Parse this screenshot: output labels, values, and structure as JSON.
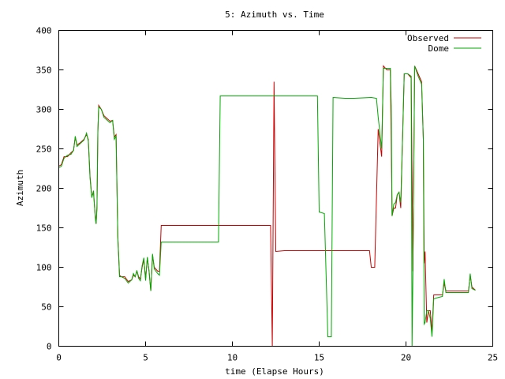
{
  "chart_data": {
    "type": "line",
    "title": "5: Azimuth vs. Time",
    "xlabel": "time (Elapse Hours)",
    "ylabel": "Azimuth",
    "xlim": [
      0,
      25
    ],
    "ylim": [
      0,
      400
    ],
    "xticks": [
      0,
      5,
      10,
      15,
      20,
      25
    ],
    "yticks": [
      0,
      50,
      100,
      150,
      200,
      250,
      300,
      350,
      400
    ],
    "grid": false,
    "legend_position": "top-right",
    "series": [
      {
        "name": "Observed",
        "color": "#cc0000",
        "points": [
          [
            0.0,
            228
          ],
          [
            0.15,
            230
          ],
          [
            0.3,
            240
          ],
          [
            0.5,
            240
          ],
          [
            0.7,
            245
          ],
          [
            0.85,
            248
          ],
          [
            0.95,
            265
          ],
          [
            1.05,
            255
          ],
          [
            1.25,
            258
          ],
          [
            1.45,
            262
          ],
          [
            1.6,
            268
          ],
          [
            1.7,
            262
          ],
          [
            1.8,
            215
          ],
          [
            1.9,
            190
          ],
          [
            2.0,
            195
          ],
          [
            2.1,
            165
          ],
          [
            2.15,
            155
          ],
          [
            2.2,
            175
          ],
          [
            2.25,
            270
          ],
          [
            2.3,
            305
          ],
          [
            2.45,
            300
          ],
          [
            2.6,
            292
          ],
          [
            2.75,
            289
          ],
          [
            2.95,
            285
          ],
          [
            3.1,
            286
          ],
          [
            3.2,
            265
          ],
          [
            3.3,
            268
          ],
          [
            3.4,
            140
          ],
          [
            3.5,
            90
          ],
          [
            3.6,
            88
          ],
          [
            3.8,
            88
          ],
          [
            4.0,
            82
          ],
          [
            4.2,
            84
          ],
          [
            4.3,
            90
          ],
          [
            4.4,
            88
          ],
          [
            4.5,
            95
          ],
          [
            4.6,
            88
          ],
          [
            4.7,
            85
          ],
          [
            4.8,
            100
          ],
          [
            4.9,
            110
          ],
          [
            5.0,
            85
          ],
          [
            5.1,
            112
          ],
          [
            5.2,
            95
          ],
          [
            5.3,
            70
          ],
          [
            5.4,
            115
          ],
          [
            5.5,
            100
          ],
          [
            5.7,
            95
          ],
          [
            5.8,
            95
          ],
          [
            5.9,
            153
          ],
          [
            6.5,
            153
          ],
          [
            8.0,
            153
          ],
          [
            9.0,
            153
          ],
          [
            10.0,
            153
          ],
          [
            11.0,
            153
          ],
          [
            12.0,
            153
          ],
          [
            12.2,
            153
          ],
          [
            12.3,
            0
          ],
          [
            12.4,
            335
          ],
          [
            12.5,
            120
          ],
          [
            13.0,
            121
          ],
          [
            14.0,
            121
          ],
          [
            15.0,
            121
          ],
          [
            16.0,
            121
          ],
          [
            17.0,
            121
          ],
          [
            17.9,
            121
          ],
          [
            18.0,
            100
          ],
          [
            18.2,
            100
          ],
          [
            18.4,
            275
          ],
          [
            18.6,
            240
          ],
          [
            18.7,
            355
          ],
          [
            18.9,
            350
          ],
          [
            19.1,
            350
          ],
          [
            19.2,
            165
          ],
          [
            19.3,
            175
          ],
          [
            19.4,
            175
          ],
          [
            19.5,
            192
          ],
          [
            19.6,
            195
          ],
          [
            19.7,
            175
          ],
          [
            19.8,
            260
          ],
          [
            19.9,
            345
          ],
          [
            20.1,
            345
          ],
          [
            20.3,
            340
          ],
          [
            20.4,
            95
          ],
          [
            20.5,
            355
          ],
          [
            20.7,
            345
          ],
          [
            20.9,
            335
          ],
          [
            21.0,
            262
          ],
          [
            21.05,
            105
          ],
          [
            21.1,
            120
          ],
          [
            21.2,
            30
          ],
          [
            21.3,
            45
          ],
          [
            21.4,
            45
          ],
          [
            21.5,
            18
          ],
          [
            21.6,
            65
          ],
          [
            21.9,
            65
          ],
          [
            22.1,
            65
          ],
          [
            22.2,
            80
          ],
          [
            22.3,
            70
          ],
          [
            22.8,
            70
          ],
          [
            23.0,
            70
          ],
          [
            23.5,
            70
          ],
          [
            23.6,
            70
          ],
          [
            23.7,
            90
          ],
          [
            23.8,
            75
          ],
          [
            24.0,
            71
          ]
        ]
      },
      {
        "name": "Dome",
        "color": "#00aa00",
        "points": [
          [
            0.0,
            226
          ],
          [
            0.15,
            228
          ],
          [
            0.3,
            238
          ],
          [
            0.5,
            242
          ],
          [
            0.7,
            243
          ],
          [
            0.85,
            248
          ],
          [
            0.95,
            266
          ],
          [
            1.05,
            253
          ],
          [
            1.25,
            257
          ],
          [
            1.45,
            261
          ],
          [
            1.6,
            270
          ],
          [
            1.7,
            260
          ],
          [
            1.8,
            213
          ],
          [
            1.9,
            188
          ],
          [
            2.0,
            197
          ],
          [
            2.1,
            163
          ],
          [
            2.15,
            155
          ],
          [
            2.2,
            177
          ],
          [
            2.25,
            272
          ],
          [
            2.3,
            303
          ],
          [
            2.45,
            300
          ],
          [
            2.6,
            290
          ],
          [
            2.75,
            287
          ],
          [
            2.95,
            283
          ],
          [
            3.1,
            286
          ],
          [
            3.2,
            262
          ],
          [
            3.3,
            266
          ],
          [
            3.4,
            138
          ],
          [
            3.5,
            88
          ],
          [
            3.6,
            88
          ],
          [
            3.8,
            86
          ],
          [
            4.0,
            80
          ],
          [
            4.2,
            84
          ],
          [
            4.3,
            92
          ],
          [
            4.4,
            88
          ],
          [
            4.5,
            96
          ],
          [
            4.6,
            86
          ],
          [
            4.7,
            83
          ],
          [
            4.8,
            102
          ],
          [
            4.9,
            112
          ],
          [
            5.0,
            83
          ],
          [
            5.1,
            113
          ],
          [
            5.2,
            95
          ],
          [
            5.3,
            70
          ],
          [
            5.4,
            117
          ],
          [
            5.5,
            98
          ],
          [
            5.7,
            92
          ],
          [
            5.8,
            90
          ],
          [
            5.9,
            132
          ],
          [
            6.5,
            132
          ],
          [
            8.0,
            132
          ],
          [
            9.0,
            132
          ],
          [
            9.2,
            132
          ],
          [
            9.3,
            317
          ],
          [
            10.0,
            317
          ],
          [
            12.0,
            317
          ],
          [
            13.0,
            317
          ],
          [
            14.0,
            317
          ],
          [
            14.9,
            317
          ],
          [
            15.0,
            170
          ],
          [
            15.3,
            168
          ],
          [
            15.5,
            12
          ],
          [
            15.7,
            12
          ],
          [
            15.8,
            315
          ],
          [
            16.5,
            314
          ],
          [
            17.0,
            314
          ],
          [
            18.0,
            315
          ],
          [
            18.3,
            314
          ],
          [
            18.4,
            290
          ],
          [
            18.6,
            250
          ],
          [
            18.7,
            352
          ],
          [
            18.9,
            352
          ],
          [
            19.1,
            352
          ],
          [
            19.15,
            305
          ],
          [
            19.2,
            165
          ],
          [
            19.3,
            180
          ],
          [
            19.4,
            182
          ],
          [
            19.5,
            192
          ],
          [
            19.6,
            195
          ],
          [
            19.7,
            182
          ],
          [
            19.8,
            262
          ],
          [
            19.9,
            345
          ],
          [
            20.1,
            345
          ],
          [
            20.3,
            342
          ],
          [
            20.35,
            0
          ],
          [
            20.4,
            95
          ],
          [
            20.5,
            355
          ],
          [
            20.7,
            342
          ],
          [
            20.9,
            332
          ],
          [
            21.0,
            262
          ],
          [
            21.05,
            28
          ],
          [
            21.1,
            30
          ],
          [
            21.2,
            45
          ],
          [
            21.3,
            45
          ],
          [
            21.4,
            35
          ],
          [
            21.5,
            12
          ],
          [
            21.6,
            60
          ],
          [
            21.9,
            62
          ],
          [
            22.1,
            63
          ],
          [
            22.2,
            85
          ],
          [
            22.3,
            68
          ],
          [
            22.8,
            68
          ],
          [
            23.0,
            68
          ],
          [
            23.5,
            68
          ],
          [
            23.6,
            68
          ],
          [
            23.7,
            92
          ],
          [
            23.8,
            73
          ],
          [
            24.0,
            71
          ]
        ]
      }
    ]
  }
}
